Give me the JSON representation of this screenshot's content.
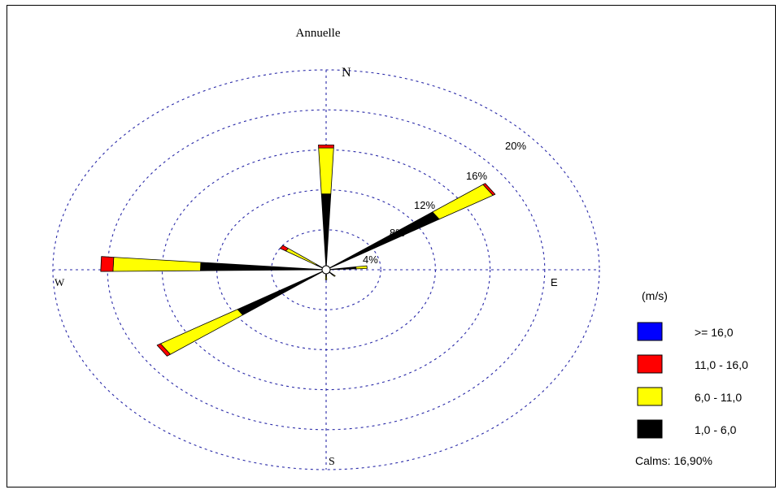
{
  "chart_data": {
    "type": "wind-rose",
    "title": "Annuelle",
    "directions": [
      {
        "label": "N",
        "angle": 0
      },
      {
        "label": "E",
        "angle": 90
      },
      {
        "label": "S",
        "angle": 180
      },
      {
        "label": "W",
        "angle": 270
      }
    ],
    "ring_labels": [
      "4%",
      "8%",
      "12%",
      "16%",
      "20%"
    ],
    "rings_percent": [
      4,
      8,
      12,
      16,
      20
    ],
    "legend_title": "(m/s)",
    "bins": [
      {
        "label": ">= 16,0",
        "color": "#0000ff"
      },
      {
        "label": "11,0 -  16,0",
        "color": "#ff0000"
      },
      {
        "label": "6,0 - 11,0",
        "color": "#ffff00"
      },
      {
        "label": "1,0 -  6,0",
        "color": "#000000"
      }
    ],
    "calms": "Calms:  16,90%",
    "sectors": [
      {
        "direction": "N",
        "angle": 0,
        "segments": [
          {
            "bin": "1,0 -  6,0",
            "pct": 7.6
          },
          {
            "bin": "6,0 - 11,0",
            "pct": 4.6
          },
          {
            "bin": "11,0 -  16,0",
            "pct": 0.3
          }
        ]
      },
      {
        "direction": "NE",
        "angle": 56,
        "segments": [
          {
            "bin": "1,0 -  6,0",
            "pct": 9.7
          },
          {
            "bin": "6,0 - 11,0",
            "pct": 4.6
          },
          {
            "bin": "11,0 -  16,0",
            "pct": 0.2
          }
        ]
      },
      {
        "direction": "E",
        "angle": 85,
        "segments": [
          {
            "bin": "1,0 -  6,0",
            "pct": 2.2
          },
          {
            "bin": "6,0 - 11,0",
            "pct": 0.8
          }
        ]
      },
      {
        "direction": "SE",
        "angle": 135,
        "segments": [
          {
            "bin": "1,0 -  6,0",
            "pct": 0.7
          },
          {
            "bin": "6,0 - 11,0",
            "pct": 0.2
          }
        ]
      },
      {
        "direction": "S",
        "angle": 180,
        "segments": [
          {
            "bin": "1,0 -  6,0",
            "pct": 0.6
          },
          {
            "bin": "6,0 - 11,0",
            "pct": 0.4
          }
        ]
      },
      {
        "direction": "SW",
        "angle": 236,
        "segments": [
          {
            "bin": "1,0 -  6,0",
            "pct": 7.6
          },
          {
            "bin": "6,0 - 11,0",
            "pct": 6.6
          },
          {
            "bin": "11,0 -  16,0",
            "pct": 0.3
          }
        ]
      },
      {
        "direction": "W",
        "angle": 272,
        "segments": [
          {
            "bin": "1,0 -  6,0",
            "pct": 9.2
          },
          {
            "bin": "6,0 - 11,0",
            "pct": 6.4
          },
          {
            "bin": "11,0 -  16,0",
            "pct": 0.9
          }
        ]
      },
      {
        "direction": "NW",
        "angle": 305,
        "segments": [
          {
            "bin": "1,0 -  6,0",
            "pct": 0.9
          },
          {
            "bin": "6,0 - 11,0",
            "pct": 2.6
          },
          {
            "bin": "11,0 -  16,0",
            "pct": 0.5
          }
        ]
      }
    ]
  }
}
